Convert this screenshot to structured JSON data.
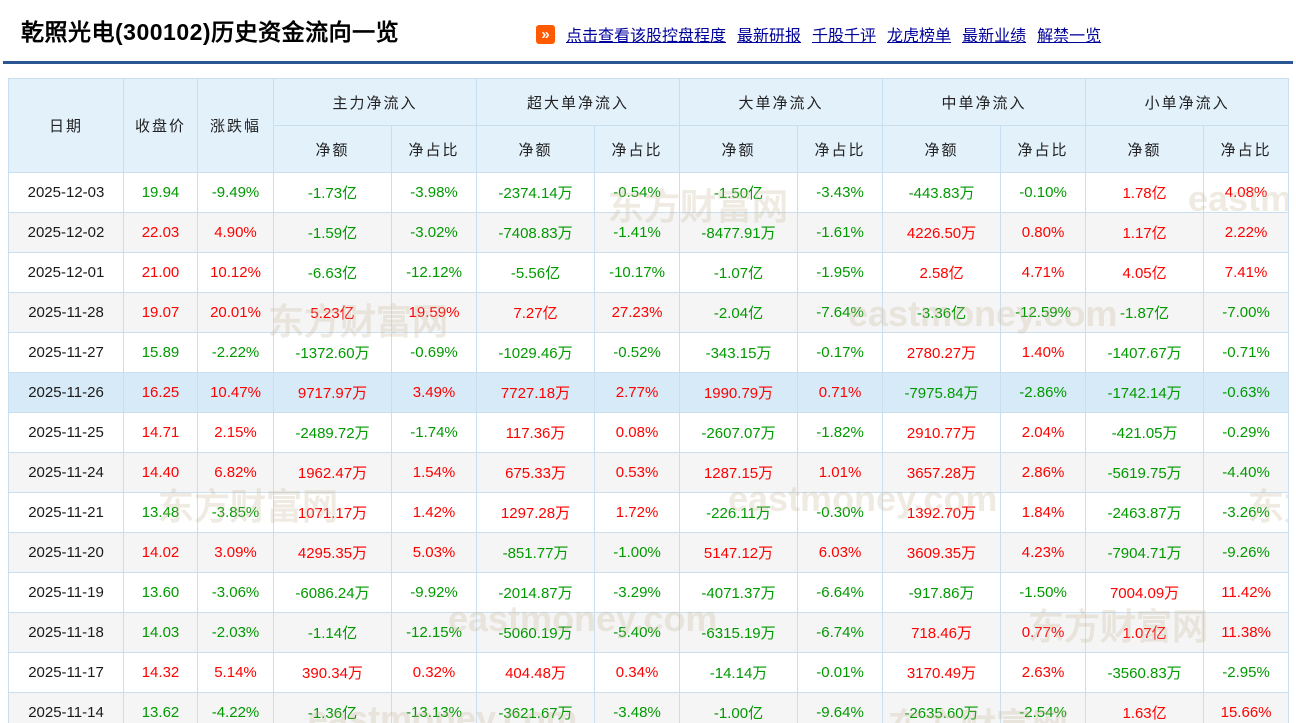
{
  "page_title": "乾照光电(300102)历史资金流向一览",
  "nav_links": [
    "点击查看该股控盘程度",
    "最新研报",
    "千股千评",
    "龙虎榜单",
    "最新业绩",
    "解禁一览"
  ],
  "table": {
    "col_headers": {
      "date": "日期",
      "close": "收盘价",
      "change": "涨跌幅",
      "net": "净额",
      "pct": "净占比"
    },
    "col_groups": [
      "主力净流入",
      "超大单净流入",
      "大单净流入",
      "中单净流入",
      "小单净流入"
    ],
    "highlighted_date": "2025-11-26",
    "rows": [
      [
        "2025-12-03",
        "19.94",
        "-9.49%",
        "-1.73亿",
        "-3.98%",
        "-2374.14万",
        "-0.54%",
        "-1.50亿",
        "-3.43%",
        "-443.83万",
        "-0.10%",
        "1.78亿",
        "4.08%"
      ],
      [
        "2025-12-02",
        "22.03",
        "4.90%",
        "-1.59亿",
        "-3.02%",
        "-7408.83万",
        "-1.41%",
        "-8477.91万",
        "-1.61%",
        "4226.50万",
        "0.80%",
        "1.17亿",
        "2.22%"
      ],
      [
        "2025-12-01",
        "21.00",
        "10.12%",
        "-6.63亿",
        "-12.12%",
        "-5.56亿",
        "-10.17%",
        "-1.07亿",
        "-1.95%",
        "2.58亿",
        "4.71%",
        "4.05亿",
        "7.41%"
      ],
      [
        "2025-11-28",
        "19.07",
        "20.01%",
        "5.23亿",
        "19.59%",
        "7.27亿",
        "27.23%",
        "-2.04亿",
        "-7.64%",
        "-3.36亿",
        "-12.59%",
        "-1.87亿",
        "-7.00%"
      ],
      [
        "2025-11-27",
        "15.89",
        "-2.22%",
        "-1372.60万",
        "-0.69%",
        "-1029.46万",
        "-0.52%",
        "-343.15万",
        "-0.17%",
        "2780.27万",
        "1.40%",
        "-1407.67万",
        "-0.71%"
      ],
      [
        "2025-11-26",
        "16.25",
        "10.47%",
        "9717.97万",
        "3.49%",
        "7727.18万",
        "2.77%",
        "1990.79万",
        "0.71%",
        "-7975.84万",
        "-2.86%",
        "-1742.14万",
        "-0.63%"
      ],
      [
        "2025-11-25",
        "14.71",
        "2.15%",
        "-2489.72万",
        "-1.74%",
        "117.36万",
        "0.08%",
        "-2607.07万",
        "-1.82%",
        "2910.77万",
        "2.04%",
        "-421.05万",
        "-0.29%"
      ],
      [
        "2025-11-24",
        "14.40",
        "6.82%",
        "1962.47万",
        "1.54%",
        "675.33万",
        "0.53%",
        "1287.15万",
        "1.01%",
        "3657.28万",
        "2.86%",
        "-5619.75万",
        "-4.40%"
      ],
      [
        "2025-11-21",
        "13.48",
        "-3.85%",
        "1071.17万",
        "1.42%",
        "1297.28万",
        "1.72%",
        "-226.11万",
        "-0.30%",
        "1392.70万",
        "1.84%",
        "-2463.87万",
        "-3.26%"
      ],
      [
        "2025-11-20",
        "14.02",
        "3.09%",
        "4295.35万",
        "5.03%",
        "-851.77万",
        "-1.00%",
        "5147.12万",
        "6.03%",
        "3609.35万",
        "4.23%",
        "-7904.71万",
        "-9.26%"
      ],
      [
        "2025-11-19",
        "13.60",
        "-3.06%",
        "-6086.24万",
        "-9.92%",
        "-2014.87万",
        "-3.29%",
        "-4071.37万",
        "-6.64%",
        "-917.86万",
        "-1.50%",
        "7004.09万",
        "11.42%"
      ],
      [
        "2025-11-18",
        "14.03",
        "-2.03%",
        "-1.14亿",
        "-12.15%",
        "-5060.19万",
        "-5.40%",
        "-6315.19万",
        "-6.74%",
        "718.46万",
        "0.77%",
        "1.07亿",
        "11.38%"
      ],
      [
        "2025-11-17",
        "14.32",
        "5.14%",
        "390.34万",
        "0.32%",
        "404.48万",
        "0.34%",
        "-14.14万",
        "-0.01%",
        "3170.49万",
        "2.63%",
        "-3560.83万",
        "-2.95%"
      ],
      [
        "2025-11-14",
        "13.62",
        "-4.22%",
        "-1.36亿",
        "-13.13%",
        "-3621.67万",
        "-3.48%",
        "-1.00亿",
        "-9.64%",
        "-2635.60万",
        "-2.54%",
        "1.63亿",
        "15.66%"
      ]
    ]
  },
  "watermark_texts": [
    "东方财富网",
    "eastmoney.com"
  ],
  "colors": {
    "up": "#ff0000",
    "down": "#009900",
    "link": "#00009a",
    "divider": "#2a5794",
    "header-bg": "#e3f1fb",
    "row-alt-bg": "#f5f5f5",
    "row-highlight-bg": "#d7eaf8",
    "border": "#c9dff0",
    "icon-bg": "#ff5a00"
  }
}
